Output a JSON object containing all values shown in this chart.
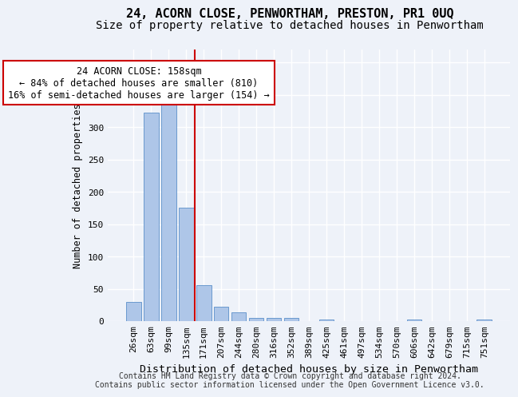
{
  "title": "24, ACORN CLOSE, PENWORTHAM, PRESTON, PR1 0UQ",
  "subtitle": "Size of property relative to detached houses in Penwortham",
  "xlabel": "Distribution of detached houses by size in Penwortham",
  "ylabel": "Number of detached properties",
  "categories": [
    "26sqm",
    "63sqm",
    "99sqm",
    "135sqm",
    "171sqm",
    "207sqm",
    "244sqm",
    "280sqm",
    "316sqm",
    "352sqm",
    "389sqm",
    "425sqm",
    "461sqm",
    "497sqm",
    "534sqm",
    "570sqm",
    "606sqm",
    "642sqm",
    "679sqm",
    "715sqm",
    "751sqm"
  ],
  "values": [
    30,
    322,
    335,
    175,
    55,
    22,
    13,
    5,
    5,
    5,
    0,
    3,
    0,
    0,
    0,
    0,
    3,
    0,
    0,
    0,
    3
  ],
  "bar_color": "#aec6e8",
  "bar_edge_color": "#5b8fc9",
  "vline_color": "#cc0000",
  "vline_x_index": 3,
  "annotation_line1": "24 ACORN CLOSE: 158sqm",
  "annotation_line2": "← 84% of detached houses are smaller (810)",
  "annotation_line3": "16% of semi-detached houses are larger (154) →",
  "annotation_box_color": "white",
  "annotation_box_edge_color": "#cc0000",
  "ylim": [
    0,
    420
  ],
  "yticks": [
    0,
    50,
    100,
    150,
    200,
    250,
    300,
    350,
    400
  ],
  "footnote": "Contains HM Land Registry data © Crown copyright and database right 2024.\nContains public sector information licensed under the Open Government Licence v3.0.",
  "background_color": "#eef2f9",
  "grid_color": "white",
  "title_fontsize": 11,
  "subtitle_fontsize": 10,
  "xlabel_fontsize": 9.5,
  "ylabel_fontsize": 8.5,
  "tick_fontsize": 8,
  "annot_fontsize": 8.5,
  "footnote_fontsize": 7
}
